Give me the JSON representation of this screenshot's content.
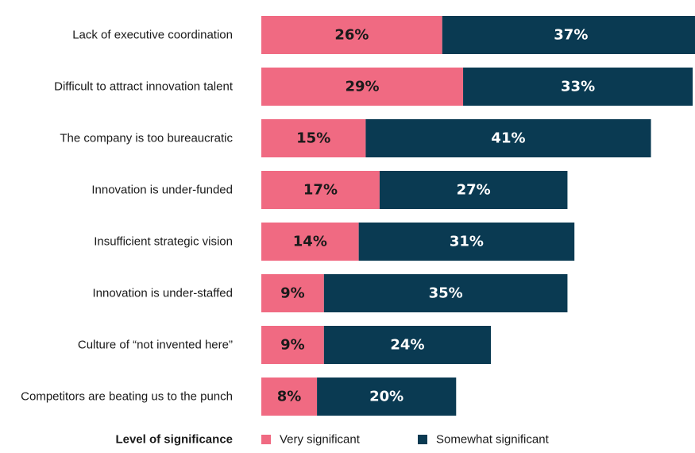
{
  "chart_data": {
    "type": "bar",
    "orientation": "horizontal",
    "stacked": true,
    "categories": [
      "Lack of executive coordination",
      "Difficult to attract innovation talent",
      "The company is too bureaucratic",
      "Innovation is under-funded",
      "Insufficient strategic vision",
      "Innovation is under-staffed",
      "Culture of “not invented here”",
      "Competitors are beating us to the punch"
    ],
    "series": [
      {
        "name": "Very significant",
        "color": "#F06A82",
        "label_color": "#1a1a1a",
        "values": [
          26,
          29,
          15,
          17,
          14,
          9,
          9,
          8
        ],
        "labels": [
          "26%",
          "29%",
          "15%",
          "17%",
          "14%",
          "9%",
          "9%",
          "8%"
        ]
      },
      {
        "name": "Somewhat significant",
        "color": "#0A3A52",
        "label_color": "#ffffff",
        "values": [
          37,
          33,
          41,
          27,
          31,
          35,
          24,
          20
        ],
        "labels": [
          "37%",
          "33%",
          "41%",
          "27%",
          "31%",
          "35%",
          "24%",
          "20%"
        ]
      }
    ],
    "legend": {
      "title": "Level of significance",
      "position": "bottom"
    },
    "xlim": [
      0,
      60
    ],
    "grid": false,
    "title": "",
    "xlabel": "",
    "ylabel": ""
  }
}
